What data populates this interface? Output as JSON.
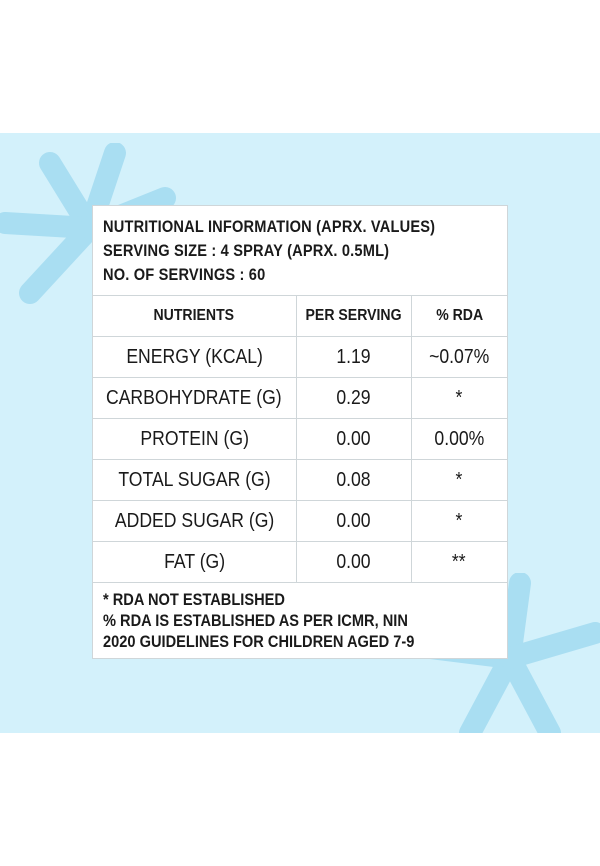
{
  "colors": {
    "band": "#d3f1fb",
    "star": "#a9def2",
    "grid": "#cfd6d9"
  },
  "decor": {
    "top_left": "star-burst-icon",
    "bottom_right": "star-burst-icon"
  },
  "header": {
    "title": "NUTRITIONAL INFORMATION (APRX. VALUES)",
    "serving_size": "SERVING SIZE : 4 SPRAY (APRX. 0.5ML)",
    "servings": "NO. OF SERVINGS : 60"
  },
  "table": {
    "columns": [
      "NUTRIENTS",
      "PER SERVING",
      "% RDA"
    ],
    "rows": [
      {
        "nutrient": "ENERGY (KCAL)",
        "per_serving": "1.19",
        "rda": "~0.07%"
      },
      {
        "nutrient": "CARBOHYDRATE (G)",
        "per_serving": "0.29",
        "rda": "*"
      },
      {
        "nutrient": "PROTEIN (G)",
        "per_serving": "0.00",
        "rda": "0.00%"
      },
      {
        "nutrient": "TOTAL SUGAR (G)",
        "per_serving": "0.08",
        "rda": "*"
      },
      {
        "nutrient": "ADDED SUGAR (G)",
        "per_serving": "0.00",
        "rda": "*"
      },
      {
        "nutrient": "FAT (G)",
        "per_serving": "0.00",
        "rda": "**"
      }
    ]
  },
  "footer": {
    "note1": "* RDA NOT ESTABLISHED",
    "note2": "% RDA IS ESTABLISHED AS PER ICMR, NIN",
    "note3": "2020 GUIDELINES FOR CHILDREN AGED 7-9"
  }
}
